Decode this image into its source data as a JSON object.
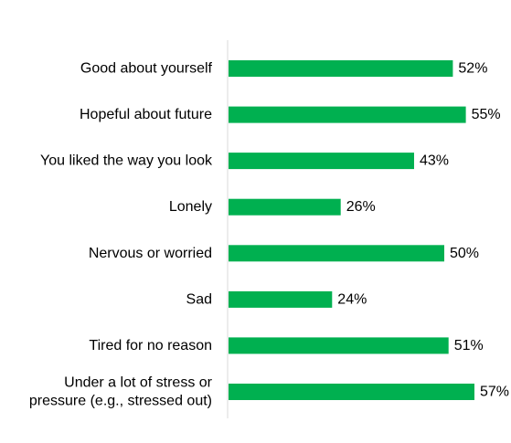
{
  "chart_data": {
    "type": "bar",
    "orientation": "horizontal",
    "categories": [
      [
        "Good about yourself"
      ],
      [
        "Hopeful about future"
      ],
      [
        "You liked the way you look"
      ],
      [
        "Lonely"
      ],
      [
        "Nervous or worried"
      ],
      [
        "Sad"
      ],
      [
        "Tired for no reason"
      ],
      [
        "Under a lot of stress or",
        "pressure (e.g., stressed out)"
      ]
    ],
    "values": [
      52,
      55,
      43,
      26,
      50,
      24,
      51,
      57
    ],
    "value_labels": [
      "52%",
      "55%",
      "43%",
      "26%",
      "50%",
      "24%",
      "51%",
      "57%"
    ],
    "value_suffix": "%",
    "xlim": [
      0,
      57
    ],
    "grid": false,
    "legend": "none",
    "bar_color": "#00b050",
    "axis_color": "#d9d9d9",
    "text_color": "#000000"
  }
}
